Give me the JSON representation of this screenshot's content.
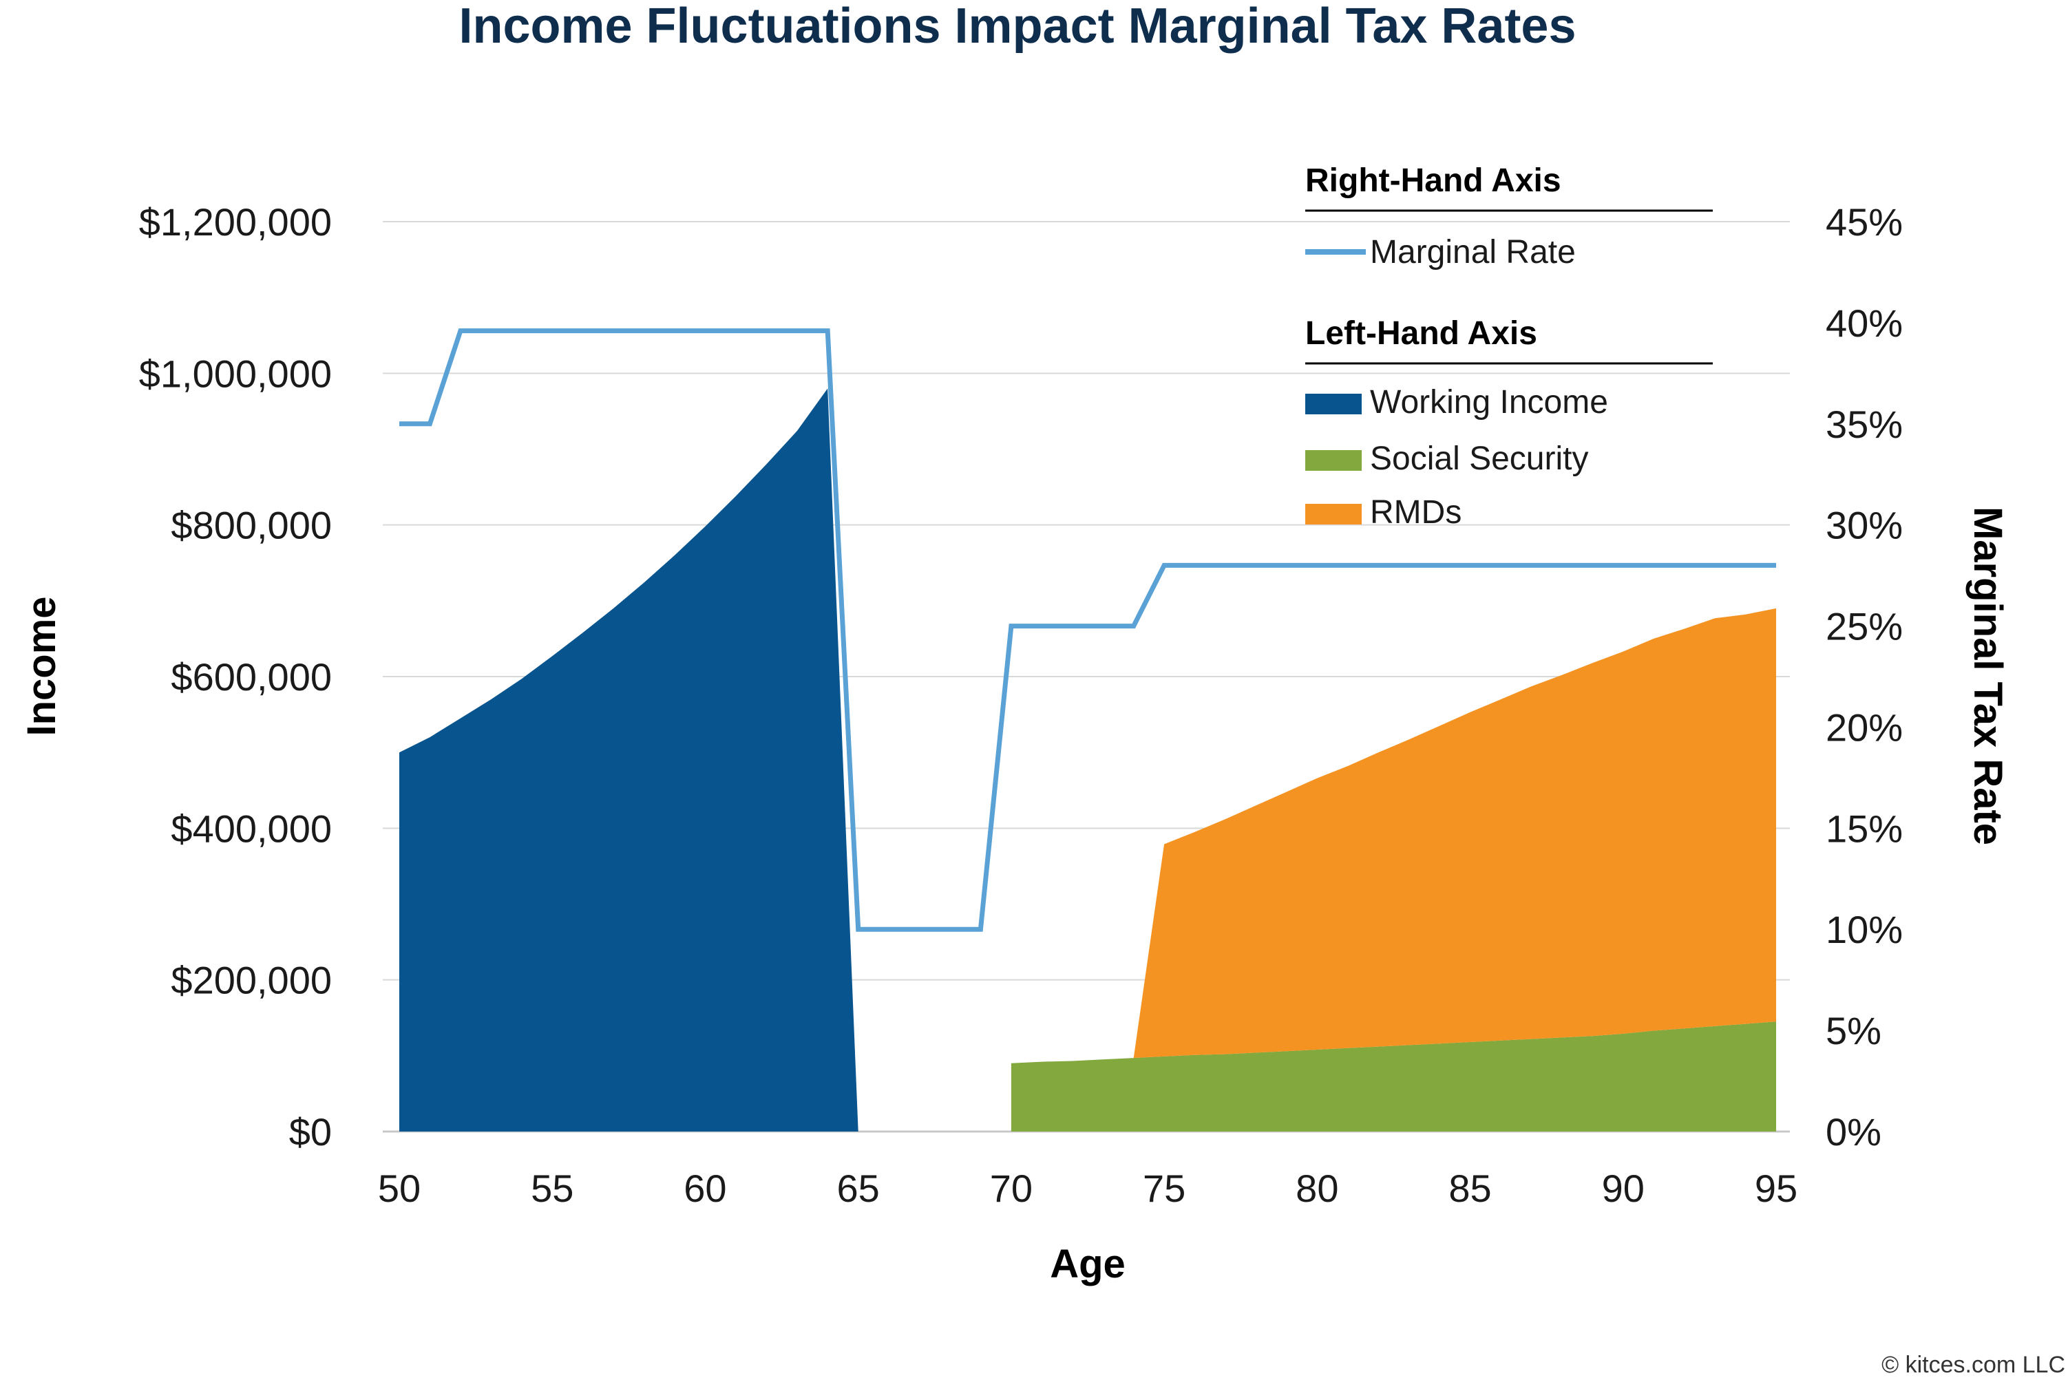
{
  "chart_data": {
    "type": "area",
    "title": "Income Fluctuations Impact Marginal Tax Rates",
    "xlabel": "Age",
    "ylabel_left": "Income",
    "ylabel_right": "Marginal Tax Rate",
    "xlim": [
      50,
      95
    ],
    "ylim_left": [
      0,
      1200000
    ],
    "ylim_right": [
      0,
      45
    ],
    "x_ticks": [
      50,
      55,
      60,
      65,
      70,
      75,
      80,
      85,
      90,
      95
    ],
    "x_tick_labels": [
      "50",
      "55",
      "60",
      "65",
      "70",
      "75",
      "80",
      "85",
      "90",
      "95"
    ],
    "y_left_ticks": [
      0,
      200000,
      400000,
      600000,
      800000,
      1000000,
      1200000
    ],
    "y_left_tick_labels": [
      "$0",
      "$200,000",
      "$400,000",
      "$600,000",
      "$800,000",
      "$1,000,000",
      "$1,200,000"
    ],
    "y_right_ticks": [
      0,
      5,
      10,
      15,
      20,
      25,
      30,
      35,
      40,
      45
    ],
    "y_right_tick_labels": [
      "0%",
      "5%",
      "10%",
      "15%",
      "20%",
      "25%",
      "30%",
      "35%",
      "40%",
      "45%"
    ],
    "grid": true,
    "legend_position": "top-right",
    "legend_groups": [
      {
        "heading": "Right-Hand Axis",
        "items": [
          "Marginal Rate"
        ]
      },
      {
        "heading": "Left-Hand Axis",
        "items": [
          "Working Income",
          "Social Security",
          "RMDs"
        ]
      }
    ],
    "x": [
      50,
      51,
      52,
      53,
      54,
      55,
      56,
      57,
      58,
      59,
      60,
      61,
      62,
      63,
      64,
      65,
      66,
      67,
      68,
      69,
      70,
      71,
      72,
      73,
      74,
      75,
      76,
      77,
      78,
      79,
      80,
      81,
      82,
      83,
      84,
      85,
      86,
      87,
      88,
      89,
      90,
      91,
      92,
      93,
      94,
      95
    ],
    "series": [
      {
        "name": "Working Income",
        "axis": "left",
        "kind": "area",
        "color": "#08548f",
        "values": [
          500000,
          520000,
          545000,
          570000,
          597000,
          627000,
          658000,
          690000,
          724000,
          760000,
          798000,
          838000,
          880000,
          924000,
          980000,
          0,
          0,
          0,
          0,
          0,
          0,
          0,
          0,
          0,
          0,
          0,
          0,
          0,
          0,
          0,
          0,
          0,
          0,
          0,
          0,
          0,
          0,
          0,
          0,
          0,
          0,
          0,
          0,
          0,
          0,
          0
        ]
      },
      {
        "name": "Social Security",
        "axis": "left",
        "kind": "area",
        "color": "#82a83e",
        "values": [
          0,
          0,
          0,
          0,
          0,
          0,
          0,
          0,
          0,
          0,
          0,
          0,
          0,
          0,
          0,
          0,
          0,
          0,
          0,
          0,
          90000,
          92000,
          93000,
          95000,
          97000,
          99000,
          101000,
          102000,
          104000,
          106000,
          108000,
          110000,
          112000,
          114000,
          116000,
          118000,
          120000,
          122000,
          124000,
          126000,
          129000,
          133000,
          136000,
          139000,
          142000,
          145000
        ]
      },
      {
        "name": "RMDs",
        "axis": "left",
        "kind": "area",
        "stacked_on": "Social Security",
        "color": "#f59322",
        "values": [
          0,
          0,
          0,
          0,
          0,
          0,
          0,
          0,
          0,
          0,
          0,
          0,
          0,
          0,
          0,
          0,
          0,
          0,
          0,
          0,
          0,
          0,
          0,
          0,
          0,
          280000,
          294000,
          310000,
          326000,
          342000,
          358000,
          372000,
          388000,
          403000,
          419000,
          435000,
          450000,
          465000,
          478000,
          492000,
          504000,
          517000,
          527000,
          538000,
          540000,
          545000
        ]
      },
      {
        "name": "Marginal Rate",
        "axis": "right",
        "kind": "line",
        "color": "#5aa2d6",
        "values": [
          35,
          35,
          39.6,
          39.6,
          39.6,
          39.6,
          39.6,
          39.6,
          39.6,
          39.6,
          39.6,
          39.6,
          39.6,
          39.6,
          39.6,
          10,
          10,
          10,
          10,
          10,
          25,
          25,
          25,
          25,
          25,
          28,
          28,
          28,
          28,
          28,
          28,
          28,
          28,
          28,
          28,
          28,
          28,
          28,
          28,
          28,
          28,
          28,
          28,
          28,
          28,
          28
        ]
      }
    ],
    "credit": "© kitces.com LLC"
  }
}
